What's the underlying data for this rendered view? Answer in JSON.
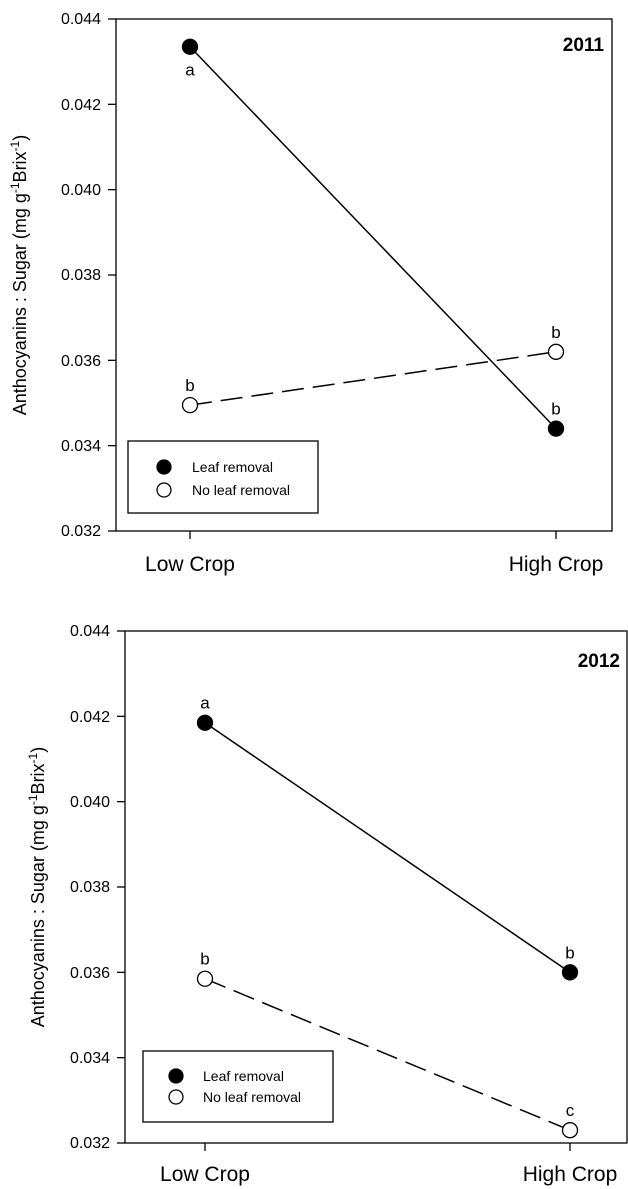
{
  "chart_data": [
    {
      "type": "line",
      "panel_label": "2011",
      "categories": [
        "Low Crop",
        "High Crop"
      ],
      "ylabel_main": "Anthocyanins : Sugar (mg g",
      "ylabel_sup1": "-1",
      "ylabel_mid": "Brix",
      "ylabel_sup2": "-1",
      "ylabel_end": ")",
      "ylim": [
        0.032,
        0.044
      ],
      "yticks": [
        "0.032",
        "0.034",
        "0.036",
        "0.038",
        "0.040",
        "0.042",
        "0.044"
      ],
      "legend_position": "bottom-left",
      "series": [
        {
          "name": "Leaf removal",
          "marker": "filled",
          "line": "solid",
          "values": [
            0.04335,
            0.0344
          ],
          "significance": [
            "a",
            "b"
          ]
        },
        {
          "name": "No leaf removal",
          "marker": "open",
          "line": "dashed",
          "values": [
            0.03495,
            0.0362
          ],
          "significance": [
            "b",
            "b"
          ]
        }
      ]
    },
    {
      "type": "line",
      "panel_label": "2012",
      "categories": [
        "Low Crop",
        "High Crop"
      ],
      "ylabel_main": "Anthocyanins : Sugar (mg g",
      "ylabel_sup1": "-1",
      "ylabel_mid": "Brix",
      "ylabel_sup2": "-1",
      "ylabel_end": ")",
      "ylim": [
        0.032,
        0.044
      ],
      "yticks": [
        "0.032",
        "0.034",
        "0.036",
        "0.038",
        "0.040",
        "0.042",
        "0.044"
      ],
      "legend_position": "bottom-left",
      "series": [
        {
          "name": "Leaf removal",
          "marker": "filled",
          "line": "solid",
          "values": [
            0.04185,
            0.036
          ],
          "significance": [
            "a",
            "b"
          ]
        },
        {
          "name": "No leaf removal",
          "marker": "open",
          "line": "dashed",
          "values": [
            0.03585,
            0.0323
          ],
          "significance": [
            "b",
            "c"
          ]
        }
      ]
    }
  ]
}
